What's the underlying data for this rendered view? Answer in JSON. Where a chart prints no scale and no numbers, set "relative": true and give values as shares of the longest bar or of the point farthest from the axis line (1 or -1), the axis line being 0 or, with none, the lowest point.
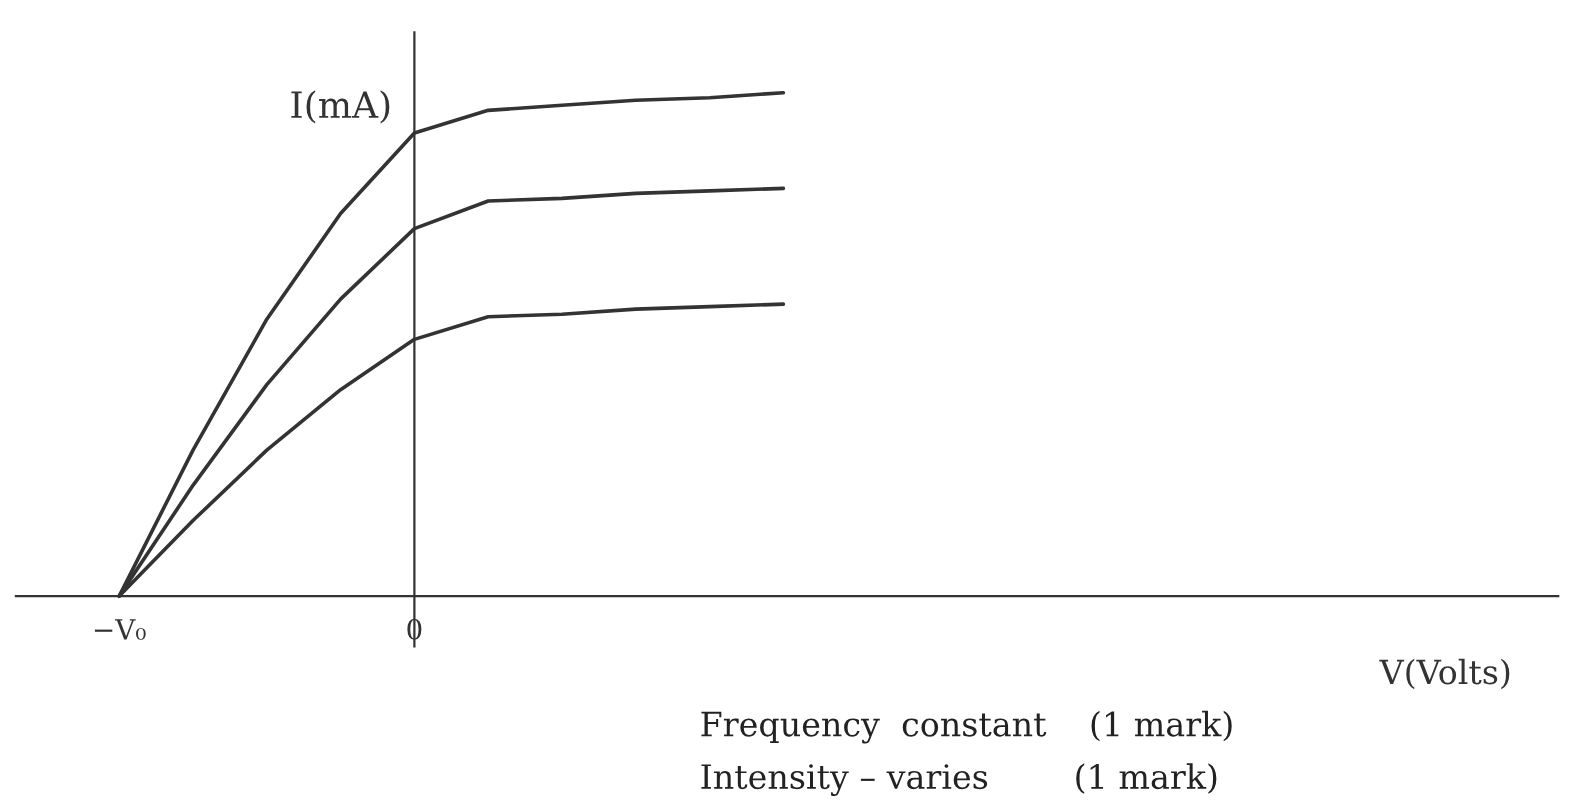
{
  "chart_data": {
    "type": "line",
    "relative": true,
    "xlabel": "V(Volts)",
    "ylabel": "I(mA)",
    "categories": [
      "−V₀",
      null,
      null,
      null,
      "0",
      null,
      null,
      null,
      null,
      null,
      null,
      null,
      null,
      null,
      null,
      null,
      null,
      null,
      null,
      null
    ],
    "series": [
      {
        "color": "#333333",
        "values": [
          0,
          0.29,
          0.55,
          0.76,
          0.92,
          0.965,
          0.975,
          0.985,
          0.99,
          1.0,
          null,
          null,
          null,
          null,
          null,
          null,
          null,
          null,
          null,
          null
        ]
      },
      {
        "color": "#333333",
        "values": [
          0,
          0.22,
          0.42,
          0.59,
          0.73,
          0.785,
          0.79,
          0.8,
          0.805,
          0.81,
          null,
          null,
          null,
          null,
          null,
          null,
          null,
          null,
          null,
          null
        ]
      },
      {
        "color": "#333333",
        "values": [
          0,
          0.15,
          0.29,
          0.41,
          0.51,
          0.555,
          0.56,
          0.57,
          0.575,
          0.58,
          null,
          null,
          null,
          null,
          null,
          null,
          null,
          null,
          null,
          null
        ]
      }
    ],
    "annotations": [
      "Frequency  constant    (1 mark)",
      "Intensity – varies        (1 mark)"
    ]
  }
}
